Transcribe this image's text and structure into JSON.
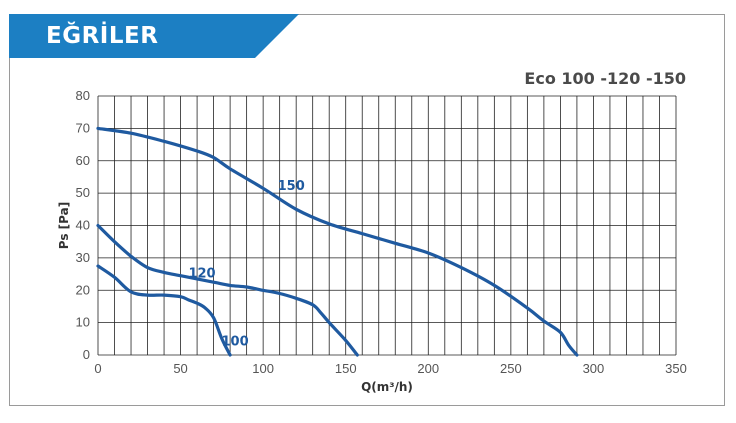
{
  "header": {
    "title": "EĞRİLER"
  },
  "model": "Eco 100 -120 -150",
  "colors": {
    "accent": "#1c7fc3",
    "curve": "#1f5aa0",
    "grid": "#222222"
  },
  "chart_data": {
    "type": "line",
    "xlabel": "Q(m³/h)",
    "ylabel": "Ps [Pa]",
    "xlim": [
      0,
      350
    ],
    "ylim": [
      0,
      80
    ],
    "x_ticks": [
      "0",
      "50",
      "100",
      "150",
      "200",
      "250",
      "300",
      "350"
    ],
    "y_ticks": [
      "0",
      "10",
      "20",
      "30",
      "40",
      "50",
      "60",
      "70",
      "80"
    ],
    "grid": true,
    "series": [
      {
        "name": "100",
        "x": [
          0,
          10,
          20,
          30,
          40,
          50,
          55,
          60,
          65,
          70,
          75,
          80
        ],
        "y": [
          27.5,
          24,
          19.5,
          18.5,
          18.5,
          18,
          17,
          16,
          14.5,
          11.5,
          5,
          0
        ]
      },
      {
        "name": "120",
        "x": [
          0,
          10,
          20,
          30,
          40,
          50,
          60,
          70,
          80,
          90,
          100,
          110,
          120,
          130,
          135,
          140,
          150,
          157
        ],
        "y": [
          40,
          35,
          30.5,
          27,
          25.5,
          24.5,
          23.5,
          22.5,
          21.5,
          21,
          20,
          19,
          17.5,
          15.5,
          13,
          10,
          4.5,
          0
        ]
      },
      {
        "name": "150",
        "x": [
          0,
          20,
          40,
          60,
          70,
          80,
          100,
          120,
          140,
          160,
          180,
          200,
          220,
          240,
          260,
          270,
          280,
          285,
          290
        ],
        "y": [
          70,
          68.5,
          66,
          63,
          61,
          57.5,
          51.5,
          45,
          40.5,
          37.5,
          34.5,
          31.5,
          27,
          21.5,
          14.5,
          10.5,
          7,
          3,
          0
        ]
      }
    ],
    "labels": [
      {
        "text": "100",
        "x": 83,
        "y": 3
      },
      {
        "text": "120",
        "x": 63,
        "y": 24
      },
      {
        "text": "150",
        "x": 117,
        "y": 51
      }
    ]
  }
}
